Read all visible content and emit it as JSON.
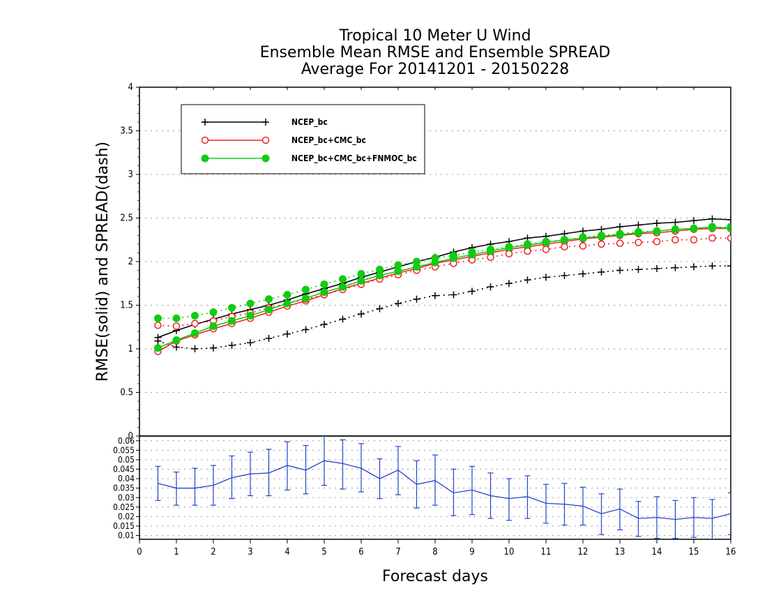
{
  "chart_data": [
    {
      "type": "line",
      "title_lines": [
        "Tropical 10 Meter U Wind",
        "Ensemble Mean RMSE and Ensemble SPREAD",
        "Average For 20141201 - 20150228"
      ],
      "ylabel": "RMSE(solid) and SPREAD(dash)",
      "xlabel": "Forecast days",
      "xlim": [
        0,
        16
      ],
      "ylim": [
        0,
        4
      ],
      "xticks": [
        "0",
        "1",
        "2",
        "3",
        "4",
        "5",
        "6",
        "7",
        "8",
        "9",
        "10",
        "11",
        "12",
        "13",
        "14",
        "15",
        "16"
      ],
      "yticks": [
        "0",
        "0.5",
        "1",
        "1.5",
        "2",
        "2.5",
        "3",
        "3.5",
        "4"
      ],
      "grid": "horizontal dotted",
      "legend_position": "top-left",
      "x": [
        0.5,
        1,
        1.5,
        2,
        2.5,
        3,
        3.5,
        4,
        4.5,
        5,
        5.5,
        6,
        6.5,
        7,
        7.5,
        8,
        8.5,
        9,
        9.5,
        10,
        10.5,
        11,
        11.5,
        12,
        12.5,
        13,
        13.5,
        14,
        14.5,
        15,
        15.5,
        16
      ],
      "series": [
        {
          "name": "NCEP_bc",
          "color": "#000000",
          "marker": "plus",
          "style": "solid",
          "values": [
            1.13,
            1.21,
            1.28,
            1.34,
            1.4,
            1.45,
            1.5,
            1.56,
            1.63,
            1.69,
            1.75,
            1.82,
            1.88,
            1.94,
            2.0,
            2.05,
            2.11,
            2.16,
            2.2,
            2.23,
            2.27,
            2.29,
            2.32,
            2.35,
            2.37,
            2.4,
            2.42,
            2.44,
            2.45,
            2.47,
            2.49,
            2.48
          ]
        },
        {
          "name": "NCEP_bc",
          "color": "#000000",
          "marker": "plus",
          "style": "dash",
          "values": [
            1.09,
            1.02,
            1.0,
            1.01,
            1.04,
            1.07,
            1.12,
            1.17,
            1.22,
            1.28,
            1.34,
            1.4,
            1.46,
            1.52,
            1.57,
            1.61,
            1.62,
            1.66,
            1.71,
            1.75,
            1.79,
            1.82,
            1.84,
            1.86,
            1.88,
            1.9,
            1.91,
            1.92,
            1.93,
            1.94,
            1.95,
            1.95
          ]
        },
        {
          "name": "NCEP_bc+CMC_bc",
          "color": "#ee2222",
          "marker": "circle",
          "style": "solid",
          "values": [
            0.97,
            1.09,
            1.16,
            1.23,
            1.29,
            1.35,
            1.42,
            1.49,
            1.55,
            1.62,
            1.69,
            1.75,
            1.81,
            1.87,
            1.92,
            1.98,
            2.02,
            2.06,
            2.1,
            2.14,
            2.17,
            2.2,
            2.23,
            2.26,
            2.28,
            2.3,
            2.32,
            2.33,
            2.35,
            2.37,
            2.38,
            2.38
          ]
        },
        {
          "name": "NCEP_bc+CMC_bc",
          "color": "#ee2222",
          "marker": "circle",
          "style": "dash",
          "values": [
            1.27,
            1.26,
            1.29,
            1.32,
            1.37,
            1.41,
            1.47,
            1.52,
            1.57,
            1.62,
            1.68,
            1.74,
            1.8,
            1.85,
            1.9,
            1.94,
            1.98,
            2.02,
            2.05,
            2.09,
            2.12,
            2.14,
            2.17,
            2.18,
            2.2,
            2.21,
            2.22,
            2.23,
            2.25,
            2.25,
            2.27,
            2.27
          ]
        },
        {
          "name": "NCEP_bc+CMC_bc+FNMOC_bc",
          "color": "#11cc11",
          "marker": "filled-circle",
          "style": "solid",
          "values": [
            1.01,
            1.1,
            1.18,
            1.26,
            1.32,
            1.38,
            1.45,
            1.52,
            1.58,
            1.65,
            1.71,
            1.78,
            1.84,
            1.89,
            1.94,
            1.99,
            2.04,
            2.08,
            2.12,
            2.16,
            2.19,
            2.22,
            2.25,
            2.27,
            2.29,
            2.31,
            2.33,
            2.35,
            2.37,
            2.38,
            2.4,
            2.38
          ]
        },
        {
          "name": "NCEP_bc+CMC_bc+FNMOC_bc",
          "color": "#11cc11",
          "marker": "filled-circle",
          "style": "dash",
          "values": [
            1.35,
            1.35,
            1.38,
            1.42,
            1.47,
            1.52,
            1.57,
            1.62,
            1.68,
            1.74,
            1.8,
            1.86,
            1.91,
            1.96,
            2.0,
            2.04,
            2.07,
            2.11,
            2.14,
            2.17,
            2.2,
            2.23,
            2.25,
            2.28,
            2.3,
            2.32,
            2.34,
            2.35,
            2.37,
            2.38,
            2.39,
            2.4
          ]
        }
      ]
    },
    {
      "type": "line",
      "xlabel": "Forecast days",
      "xlim": [
        0,
        16
      ],
      "ylim": [
        0.008,
        0.0625
      ],
      "yticks": [
        "0.01",
        "0.015",
        "0.02",
        "0.025",
        "0.03",
        "0.035",
        "0.04",
        "0.045",
        "0.05",
        "0.055",
        "0.06"
      ],
      "xticks": [
        "0",
        "1",
        "2",
        "3",
        "4",
        "5",
        "6",
        "7",
        "8",
        "9",
        "10",
        "11",
        "12",
        "13",
        "14",
        "15",
        "16"
      ],
      "grid": "horizontal dotted",
      "series": [
        {
          "color": "#2244cc",
          "style": "solid",
          "error_bars": true,
          "x": [
            0.5,
            1,
            1.5,
            2,
            2.5,
            3,
            3.5,
            4,
            4.5,
            5,
            5.5,
            6,
            6.5,
            7,
            7.5,
            8,
            8.5,
            9,
            9.5,
            10,
            10.5,
            11,
            11.5,
            12,
            12.5,
            13,
            13.5,
            14,
            14.5,
            15,
            15.5,
            16
          ],
          "values": [
            0.0375,
            0.035,
            0.035,
            0.0365,
            0.0405,
            0.0425,
            0.043,
            0.047,
            0.0445,
            0.0495,
            0.048,
            0.0455,
            0.04,
            0.0445,
            0.037,
            0.039,
            0.0325,
            0.034,
            0.031,
            0.0295,
            0.0305,
            0.027,
            0.0265,
            0.0255,
            0.0215,
            0.024,
            0.019,
            0.0195,
            0.0185,
            0.0195,
            0.019,
            0.0215
          ],
          "lower": [
            0.0285,
            0.026,
            0.026,
            0.026,
            0.0295,
            0.031,
            0.031,
            0.034,
            0.032,
            0.0365,
            0.0345,
            0.033,
            0.0295,
            0.0315,
            0.0245,
            0.026,
            0.0205,
            0.021,
            0.019,
            0.018,
            0.019,
            0.0165,
            0.0155,
            0.0155,
            0.0105,
            0.013,
            0.0095,
            0.0085,
            0.0085,
            0.009,
            0.008,
            0.0105
          ],
          "upper": [
            0.0465,
            0.0435,
            0.0455,
            0.047,
            0.052,
            0.054,
            0.0555,
            0.0595,
            0.0575,
            0.0625,
            0.0605,
            0.0585,
            0.0505,
            0.057,
            0.0495,
            0.0525,
            0.045,
            0.0465,
            0.043,
            0.04,
            0.0415,
            0.037,
            0.0375,
            0.0355,
            0.032,
            0.0345,
            0.028,
            0.0305,
            0.0285,
            0.03,
            0.029,
            0.0325
          ]
        }
      ]
    }
  ]
}
